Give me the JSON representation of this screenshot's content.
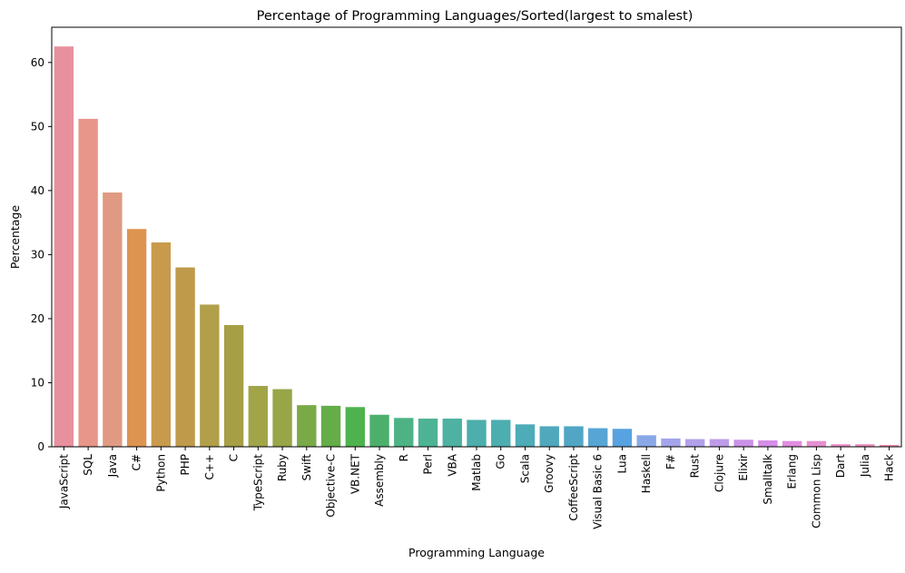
{
  "chart_data": {
    "type": "bar",
    "title": "Percentage of Programming Languages/Sorted(largest to smalest)",
    "xlabel": "Programming Language",
    "ylabel": "Percentage",
    "ylim": [
      0,
      65.5
    ],
    "yticks": [
      0,
      10,
      20,
      30,
      40,
      50,
      60
    ],
    "grid": false,
    "legend": "none",
    "categories": [
      "JavaScript",
      "SQL",
      "Java",
      "C#",
      "Python",
      "PHP",
      "C++",
      "C",
      "TypeScript",
      "Ruby",
      "Swift",
      "Objective-C",
      "VB.NET",
      "Assembly",
      "R",
      "Perl",
      "VBA",
      "Matlab",
      "Go",
      "Scala",
      "Groovy",
      "CoffeeScript",
      "Visual Basic 6",
      "Lua",
      "Haskell",
      "F#",
      "Rust",
      "Clojure",
      "Elixir",
      "Smalltalk",
      "Erlang",
      "Common Lisp",
      "Dart",
      "Julia",
      "Hack"
    ],
    "values": [
      62.5,
      51.2,
      39.7,
      34.0,
      31.9,
      28.0,
      22.2,
      19.0,
      9.5,
      9.0,
      6.5,
      6.4,
      6.2,
      5.0,
      4.5,
      4.4,
      4.4,
      4.2,
      4.2,
      3.5,
      3.2,
      3.2,
      2.9,
      2.8,
      1.8,
      1.3,
      1.2,
      1.2,
      1.1,
      1.0,
      0.9,
      0.9,
      0.4,
      0.4,
      0.3
    ],
    "colors": [
      "#e8909e",
      "#e8958a",
      "#e09a83",
      "#dd9450",
      "#c89a4c",
      "#bf9a4a",
      "#b19f4a",
      "#a69f45",
      "#a1a548",
      "#98a648",
      "#7aaa48",
      "#64ad48",
      "#4eb34e",
      "#4cb06c",
      "#4db385",
      "#4eb395",
      "#4eb2a2",
      "#4daeab",
      "#4daeb0",
      "#4eabb8",
      "#50a8bd",
      "#51a6c5",
      "#56a5d5",
      "#57a2e0",
      "#8aa8e8",
      "#a3a4ea",
      "#b2a0ea",
      "#be9bea",
      "#cb91e8",
      "#d68ee8",
      "#e18de0",
      "#e68fd2",
      "#e88dc8",
      "#e88dbb",
      "#e88fb0"
    ]
  }
}
